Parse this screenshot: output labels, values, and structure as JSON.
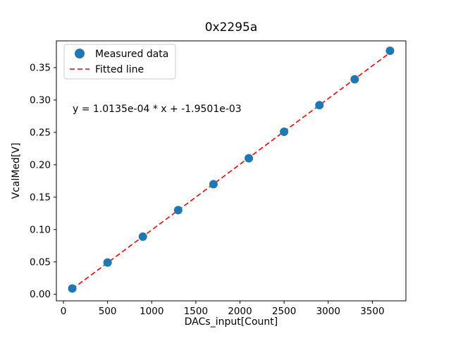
{
  "chart_data": {
    "type": "scatter",
    "title": "0x2295a",
    "xlabel": "DACs_input[Count]",
    "ylabel": "VcalMed[V]",
    "xlim": [
      -80,
      3880
    ],
    "ylim": [
      -0.0101,
      0.3913
    ],
    "xticks": [
      0,
      500,
      1000,
      1500,
      2000,
      2500,
      3000,
      3500
    ],
    "yticks": [
      0.0,
      0.05,
      0.1,
      0.15,
      0.2,
      0.25,
      0.3,
      0.35
    ],
    "grid": false,
    "series": [
      {
        "name": "Measured data",
        "kind": "scatter",
        "color": "#1f77b4",
        "x": [
          100,
          500,
          900,
          1300,
          1700,
          2100,
          2500,
          2900,
          3300,
          3700
        ],
        "y": [
          0.009,
          0.049,
          0.089,
          0.13,
          0.17,
          0.21,
          0.251,
          0.292,
          0.332,
          0.376
        ]
      },
      {
        "name": "Fitted line",
        "kind": "line",
        "style": "dashed",
        "color": "#ff0000",
        "fit": {
          "slope": 0.00010135,
          "intercept": -0.0019501,
          "x_start": 100,
          "x_end": 3700
        }
      }
    ],
    "annotation": "y = 1.0135e-04 * x + -1.9501e-03",
    "legend": {
      "position": "upper-left",
      "entries": [
        {
          "label": "Measured data",
          "marker": "circle",
          "color": "#1f77b4"
        },
        {
          "label": "Fitted line",
          "marker": "dashed-line",
          "color": "#ff0000"
        }
      ]
    }
  }
}
